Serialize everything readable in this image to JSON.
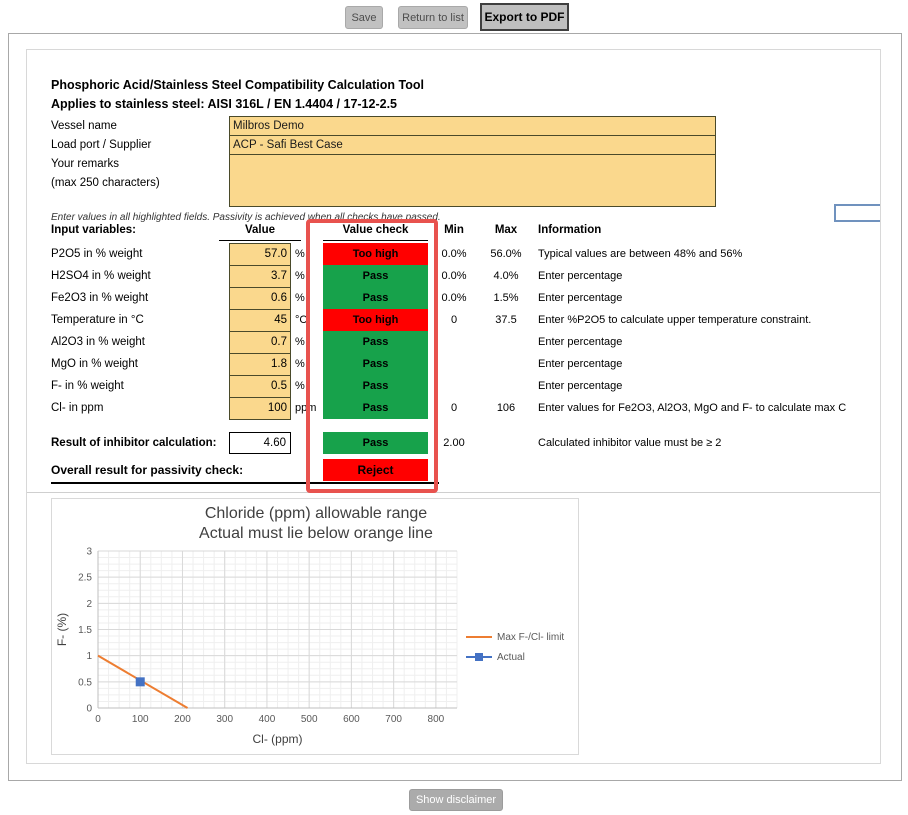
{
  "toolbar": {
    "save": "Save",
    "return_to_list": "Return to list",
    "export_pdf": "Export to PDF"
  },
  "header": {
    "title": "Phosphoric Acid/Stainless Steel Compatibility Calculation Tool",
    "subtitle": "Applies to stainless steel: AISI 316L / EN 1.4404 / 17-12-2.5"
  },
  "form": {
    "vessel_name": {
      "label": "Vessel name",
      "value": "Milbros Demo"
    },
    "load_port": {
      "label": "Load port / Supplier",
      "value": "ACP - Safi Best Case"
    },
    "remarks": {
      "label": "Your remarks",
      "label2": "(max 250 characters)",
      "value": ""
    }
  },
  "hint": "Enter values in all highlighted fields. Passivity is achieved when all checks have passed.",
  "table": {
    "headers": {
      "input_variables": "Input variables:",
      "value": "Value",
      "value_check": "Value check",
      "min": "Min",
      "max": "Max",
      "information": "Information"
    },
    "rows": [
      {
        "label": "P2O5 in % weight",
        "value": "57.0",
        "unit": "%",
        "check": "Too high",
        "status": "fail",
        "min": "0.0%",
        "max": "56.0%",
        "info": "Typical values are between 48% and 56%"
      },
      {
        "label": "H2SO4 in % weight",
        "value": "3.7",
        "unit": "%",
        "check": "Pass",
        "status": "pass",
        "min": "0.0%",
        "max": "4.0%",
        "info": "Enter percentage"
      },
      {
        "label": "Fe2O3 in % weight",
        "value": "0.6",
        "unit": "%",
        "check": "Pass",
        "status": "pass",
        "min": "0.0%",
        "max": "1.5%",
        "info": "Enter percentage"
      },
      {
        "label": "Temperature in °C",
        "value": "45",
        "unit": "°C",
        "check": "Too high",
        "status": "fail",
        "min": "0",
        "max": "37.5",
        "info": "Enter %P2O5 to calculate upper temperature constraint."
      },
      {
        "label": "Al2O3 in % weight",
        "value": "0.7",
        "unit": "%",
        "check": "Pass",
        "status": "pass",
        "min": "",
        "max": "",
        "info": "Enter percentage"
      },
      {
        "label": "MgO in % weight",
        "value": "1.8",
        "unit": "%",
        "check": "Pass",
        "status": "pass",
        "min": "",
        "max": "",
        "info": "Enter percentage"
      },
      {
        "label": "F- in % weight",
        "value": "0.5",
        "unit": "%",
        "check": "Pass",
        "status": "pass",
        "min": "",
        "max": "",
        "info": "Enter percentage"
      },
      {
        "label": "Cl- in ppm",
        "value": "100",
        "unit": "ppm",
        "check": "Pass",
        "status": "pass",
        "min": "0",
        "max": "106",
        "info": "Enter values for Fe2O3, Al2O3, MgO and F- to calculate max C"
      }
    ]
  },
  "results": {
    "inhibitor": {
      "label": "Result of inhibitor calculation:",
      "value": "4.60",
      "check": "Pass",
      "status": "pass",
      "min": "2.00",
      "info": "Calculated inhibitor value must be ≥ 2"
    },
    "overall": {
      "label": "Overall result for passivity check:",
      "check": "Reject",
      "status": "fail"
    }
  },
  "footer": {
    "show_disclaimer": "Show disclaimer"
  },
  "colors": {
    "pass_green": "#17A24B",
    "fail_red": "#FF0000",
    "input_tan": "#FAD88D",
    "annotation_red": "#E8524E",
    "series_orange": "#ED7D31",
    "series_blue": "#4472C4",
    "selection_blue": "#7092BE"
  },
  "chart_data": {
    "type": "line",
    "title": "Chloride (ppm) allowable range",
    "subtitle": "Actual must lie below orange line",
    "xlabel": "Cl- (ppm)",
    "ylabel": "F- (%)",
    "xlim": [
      0,
      850
    ],
    "ylim": [
      0,
      3
    ],
    "x_ticks": [
      0,
      100,
      200,
      300,
      400,
      500,
      600,
      700,
      800
    ],
    "y_ticks": [
      0,
      0.5,
      1,
      1.5,
      2,
      2.5,
      3
    ],
    "x_major": 100,
    "x_minor": 25,
    "y_major": 0.5,
    "y_minor": 0.125,
    "grid": true,
    "legend_position": "right",
    "series": [
      {
        "name": "Max F-/Cl- limit",
        "type": "line",
        "color": "#ED7D31",
        "points": [
          [
            0,
            1
          ],
          [
            212,
            0
          ]
        ]
      },
      {
        "name": "Actual",
        "type": "scatter",
        "color": "#4472C4",
        "points": [
          [
            100,
            0.5
          ]
        ]
      }
    ]
  }
}
